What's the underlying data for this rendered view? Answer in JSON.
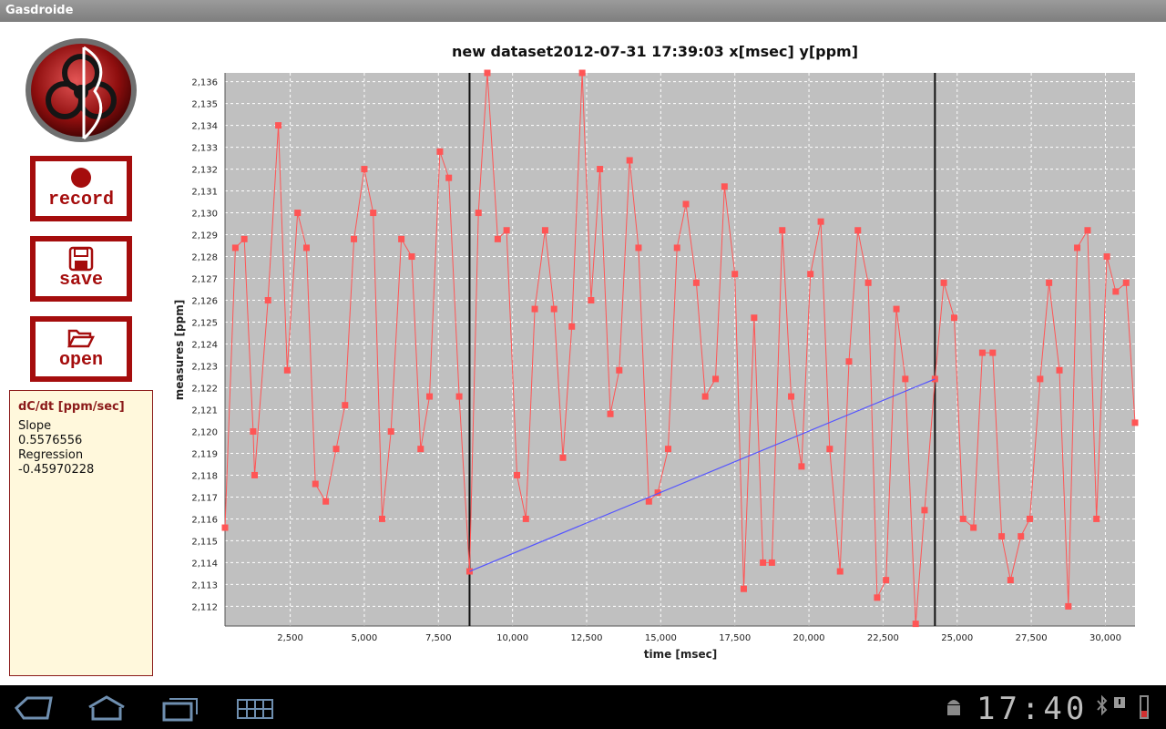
{
  "app": {
    "title": "Gasdroide"
  },
  "buttons": {
    "record": "record",
    "save": "save",
    "open": "open"
  },
  "panel": {
    "title": "dC/dt [ppm/sec]",
    "slope_label": "Slope",
    "slope_value": "0.5576556",
    "regression_label": "Regression",
    "regression_value": "-0.45970228"
  },
  "status": {
    "time": "17:40"
  },
  "colors": {
    "accent": "#a50d0d",
    "series": "#ff5555",
    "regression": "#5555ff",
    "plot_bg": "#c0c0c0"
  },
  "chart_data": {
    "type": "line",
    "title": "new dataset2012-07-31 17:39:03 x[msec] y[ppm]",
    "xlabel": "time [msec]",
    "ylabel": "measures [ppm]",
    "xlim": [
      300,
      31000
    ],
    "ylim": [
      2111.1,
      2136.4
    ],
    "x_ticks": [
      2500,
      5000,
      7500,
      10000,
      12500,
      15000,
      17500,
      20000,
      22500,
      25000,
      27500,
      30000
    ],
    "x_tick_labels": [
      "2,500",
      "5,000",
      "7,500",
      "10,000",
      "12,500",
      "15,000",
      "17,500",
      "20,000",
      "22,500",
      "25,000",
      "27,500",
      "30,000"
    ],
    "y_ticks": [
      2112,
      2113,
      2114,
      2115,
      2116,
      2117,
      2118,
      2119,
      2120,
      2121,
      2122,
      2123,
      2124,
      2125,
      2126,
      2127,
      2128,
      2129,
      2130,
      2131,
      2132,
      2133,
      2134,
      2135,
      2136
    ],
    "y_tick_labels": [
      "2,112",
      "2,113",
      "2,114",
      "2,115",
      "2,116",
      "2,117",
      "2,118",
      "2,119",
      "2,120",
      "2,121",
      "2,122",
      "2,123",
      "2,124",
      "2,125",
      "2,126",
      "2,127",
      "2,128",
      "2,129",
      "2,130",
      "2,131",
      "2,132",
      "2,133",
      "2,134",
      "2,135",
      "2,136"
    ],
    "grid": true,
    "series": [
      {
        "x": [
          300,
          650,
          950,
          1250,
          1300,
          1750,
          2100,
          2400,
          2750,
          3050,
          3350,
          3700,
          4050,
          4350,
          4650,
          5000,
          5300,
          5600,
          5900,
          6250,
          6600,
          6900,
          7200,
          7550,
          7850,
          8200,
          8550,
          8850,
          9150,
          9500,
          9800,
          10150,
          10450,
          10750,
          11100,
          11400,
          11700,
          12000,
          12350,
          12650,
          12950,
          13300,
          13600,
          13950,
          14250,
          14600,
          14900,
          15250,
          15550,
          15850,
          16200,
          16500,
          16850,
          17150,
          17500,
          17800,
          18150,
          18450,
          18750,
          19100,
          19400,
          19750,
          20050,
          20400,
          20700,
          21050,
          21350,
          21650,
          22000,
          22300,
          22600,
          22950,
          23250,
          23600,
          23900,
          24250,
          24550,
          24900,
          25200,
          25550,
          25850,
          26200,
          26500,
          26800,
          27150,
          27450,
          27800,
          28100,
          28450,
          28750,
          29050,
          29400,
          29700,
          30050,
          30350,
          30700,
          31000
        ],
        "y": [
          2115.6,
          2128.4,
          2128.8,
          2120.0,
          2118.0,
          2126.0,
          2134.0,
          2122.8,
          2130.0,
          2128.4,
          2117.6,
          2116.8,
          2119.2,
          2121.2,
          2128.8,
          2132.0,
          2130.0,
          2116.0,
          2120.0,
          2128.8,
          2128.0,
          2119.2,
          2121.6,
          2132.8,
          2131.6,
          2121.6,
          2113.6,
          2130.0,
          2136.4,
          2128.8,
          2129.2,
          2118.0,
          2116.0,
          2125.6,
          2129.2,
          2125.6,
          2118.8,
          2124.8,
          2136.4,
          2126.0,
          2132.0,
          2120.8,
          2122.8,
          2132.4,
          2128.4,
          2116.8,
          2117.2,
          2119.2,
          2128.4,
          2130.4,
          2126.8,
          2121.6,
          2122.4,
          2131.2,
          2127.2,
          2112.8,
          2125.2,
          2114.0,
          2114.0,
          2129.2,
          2121.6,
          2118.4,
          2127.2,
          2129.6,
          2119.2,
          2113.6,
          2123.2,
          2129.2,
          2126.8,
          2112.4,
          2113.2,
          2125.6,
          2122.4,
          2111.2,
          2116.4,
          2122.4,
          2126.8,
          2125.2,
          2116.0,
          2115.6,
          2123.6,
          2123.6,
          2115.2,
          2113.2,
          2115.2,
          2116.0,
          2122.4,
          2126.8,
          2122.8,
          2112.0,
          2128.4,
          2129.2,
          2116.0,
          2128.0,
          2126.4,
          2126.8,
          2120.4
        ]
      }
    ],
    "regression_line": {
      "x": [
        8550,
        24250
      ],
      "y": [
        2113.6,
        2122.4
      ]
    },
    "markers_x": [
      8550,
      24250
    ]
  }
}
